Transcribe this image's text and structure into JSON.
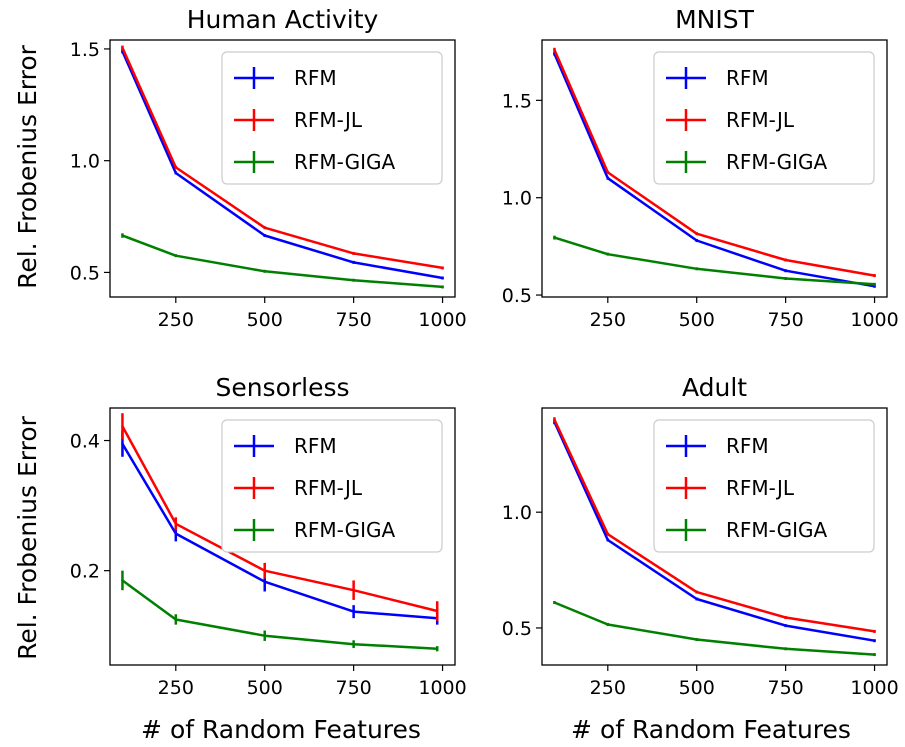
{
  "figure": {
    "ylabel": "Rel. Frobenius Error",
    "xlabel": "# of Random Features"
  },
  "legend_location": "upper right",
  "colors": {
    "RFM": "#0000ff",
    "RFM-JL": "#ff0000",
    "RFM-GIGA": "#008000"
  },
  "chart_data": [
    {
      "type": "line",
      "title": "Human Activity",
      "x": [
        100,
        250,
        500,
        750,
        1000
      ],
      "xticks": [
        250,
        500,
        750,
        1000
      ],
      "xlim": [
        65,
        1035
      ],
      "yticks": [
        0.5,
        1.0,
        1.5
      ],
      "ytick_labels": [
        "0.5",
        "1.0",
        "1.5"
      ],
      "ylim": [
        0.39,
        1.54
      ],
      "grid": false,
      "legend": "upper right",
      "series": [
        {
          "name": "RFM",
          "values": [
            1.49,
            0.945,
            0.665,
            0.545,
            0.475
          ],
          "err": [
            0.01,
            0.0,
            0.0,
            0.0,
            0.0
          ]
        },
        {
          "name": "RFM-JL",
          "values": [
            1.505,
            0.97,
            0.7,
            0.585,
            0.52
          ],
          "err": [
            0.01,
            0.0,
            0.0,
            0.0,
            0.0
          ]
        },
        {
          "name": "RFM-GIGA",
          "values": [
            0.665,
            0.575,
            0.505,
            0.465,
            0.435
          ],
          "err": [
            0.01,
            0.0,
            0.0,
            0.0,
            0.0
          ]
        }
      ]
    },
    {
      "type": "line",
      "title": "MNIST",
      "x": [
        100,
        250,
        500,
        750,
        1000
      ],
      "xticks": [
        250,
        500,
        750,
        1000
      ],
      "xlim": [
        65,
        1035
      ],
      "yticks": [
        0.5,
        1.0,
        1.5
      ],
      "ytick_labels": [
        "0.5",
        "1.0",
        "1.5"
      ],
      "ylim": [
        0.49,
        1.81
      ],
      "grid": false,
      "legend": "upper right",
      "series": [
        {
          "name": "RFM",
          "values": [
            1.74,
            1.1,
            0.78,
            0.625,
            0.545
          ],
          "err": [
            0.01,
            0.0,
            0.0,
            0.0,
            0.0
          ]
        },
        {
          "name": "RFM-JL",
          "values": [
            1.76,
            1.13,
            0.815,
            0.68,
            0.6
          ],
          "err": [
            0.01,
            0.0,
            0.0,
            0.0,
            0.0
          ]
        },
        {
          "name": "RFM-GIGA",
          "values": [
            0.795,
            0.71,
            0.635,
            0.585,
            0.555
          ],
          "err": [
            0.01,
            0.0,
            0.0,
            0.0,
            0.0
          ]
        }
      ]
    },
    {
      "type": "line",
      "title": "Sensorless",
      "x": [
        100,
        250,
        500,
        750,
        985
      ],
      "xticks": [
        250,
        500,
        750,
        1000
      ],
      "xlim": [
        65,
        1035
      ],
      "yticks": [
        0.2,
        0.4
      ],
      "ytick_labels": [
        "0.2",
        "0.4"
      ],
      "ylim": [
        0.055,
        0.45
      ],
      "grid": false,
      "legend": "upper right",
      "series": [
        {
          "name": "RFM",
          "values": [
            0.395,
            0.257,
            0.183,
            0.137,
            0.127
          ],
          "err": [
            0.02,
            0.012,
            0.015,
            0.01,
            0.01
          ]
        },
        {
          "name": "RFM-JL",
          "values": [
            0.422,
            0.272,
            0.2,
            0.17,
            0.138
          ],
          "err": [
            0.02,
            0.01,
            0.012,
            0.015,
            0.015
          ]
        },
        {
          "name": "RFM-GIGA",
          "values": [
            0.185,
            0.125,
            0.1,
            0.087,
            0.08
          ],
          "err": [
            0.015,
            0.008,
            0.008,
            0.006,
            0.004
          ]
        }
      ]
    },
    {
      "type": "line",
      "title": "Adult",
      "x": [
        100,
        250,
        500,
        750,
        1000
      ],
      "xticks": [
        250,
        500,
        750,
        1000
      ],
      "xlim": [
        65,
        1035
      ],
      "yticks": [
        0.5,
        1.0
      ],
      "ytick_labels": [
        "0.5",
        "1.0"
      ],
      "ylim": [
        0.34,
        1.45
      ],
      "grid": false,
      "legend": "upper right",
      "series": [
        {
          "name": "RFM",
          "values": [
            1.39,
            0.88,
            0.625,
            0.51,
            0.445
          ],
          "err": [
            0.01,
            0.0,
            0.0,
            0.0,
            0.0
          ]
        },
        {
          "name": "RFM-JL",
          "values": [
            1.4,
            0.905,
            0.655,
            0.545,
            0.485
          ],
          "err": [
            0.01,
            0.0,
            0.0,
            0.0,
            0.0
          ]
        },
        {
          "name": "RFM-GIGA",
          "values": [
            0.61,
            0.515,
            0.45,
            0.41,
            0.385
          ],
          "err": [
            0.005,
            0.0,
            0.0,
            0.0,
            0.0
          ]
        }
      ]
    }
  ]
}
